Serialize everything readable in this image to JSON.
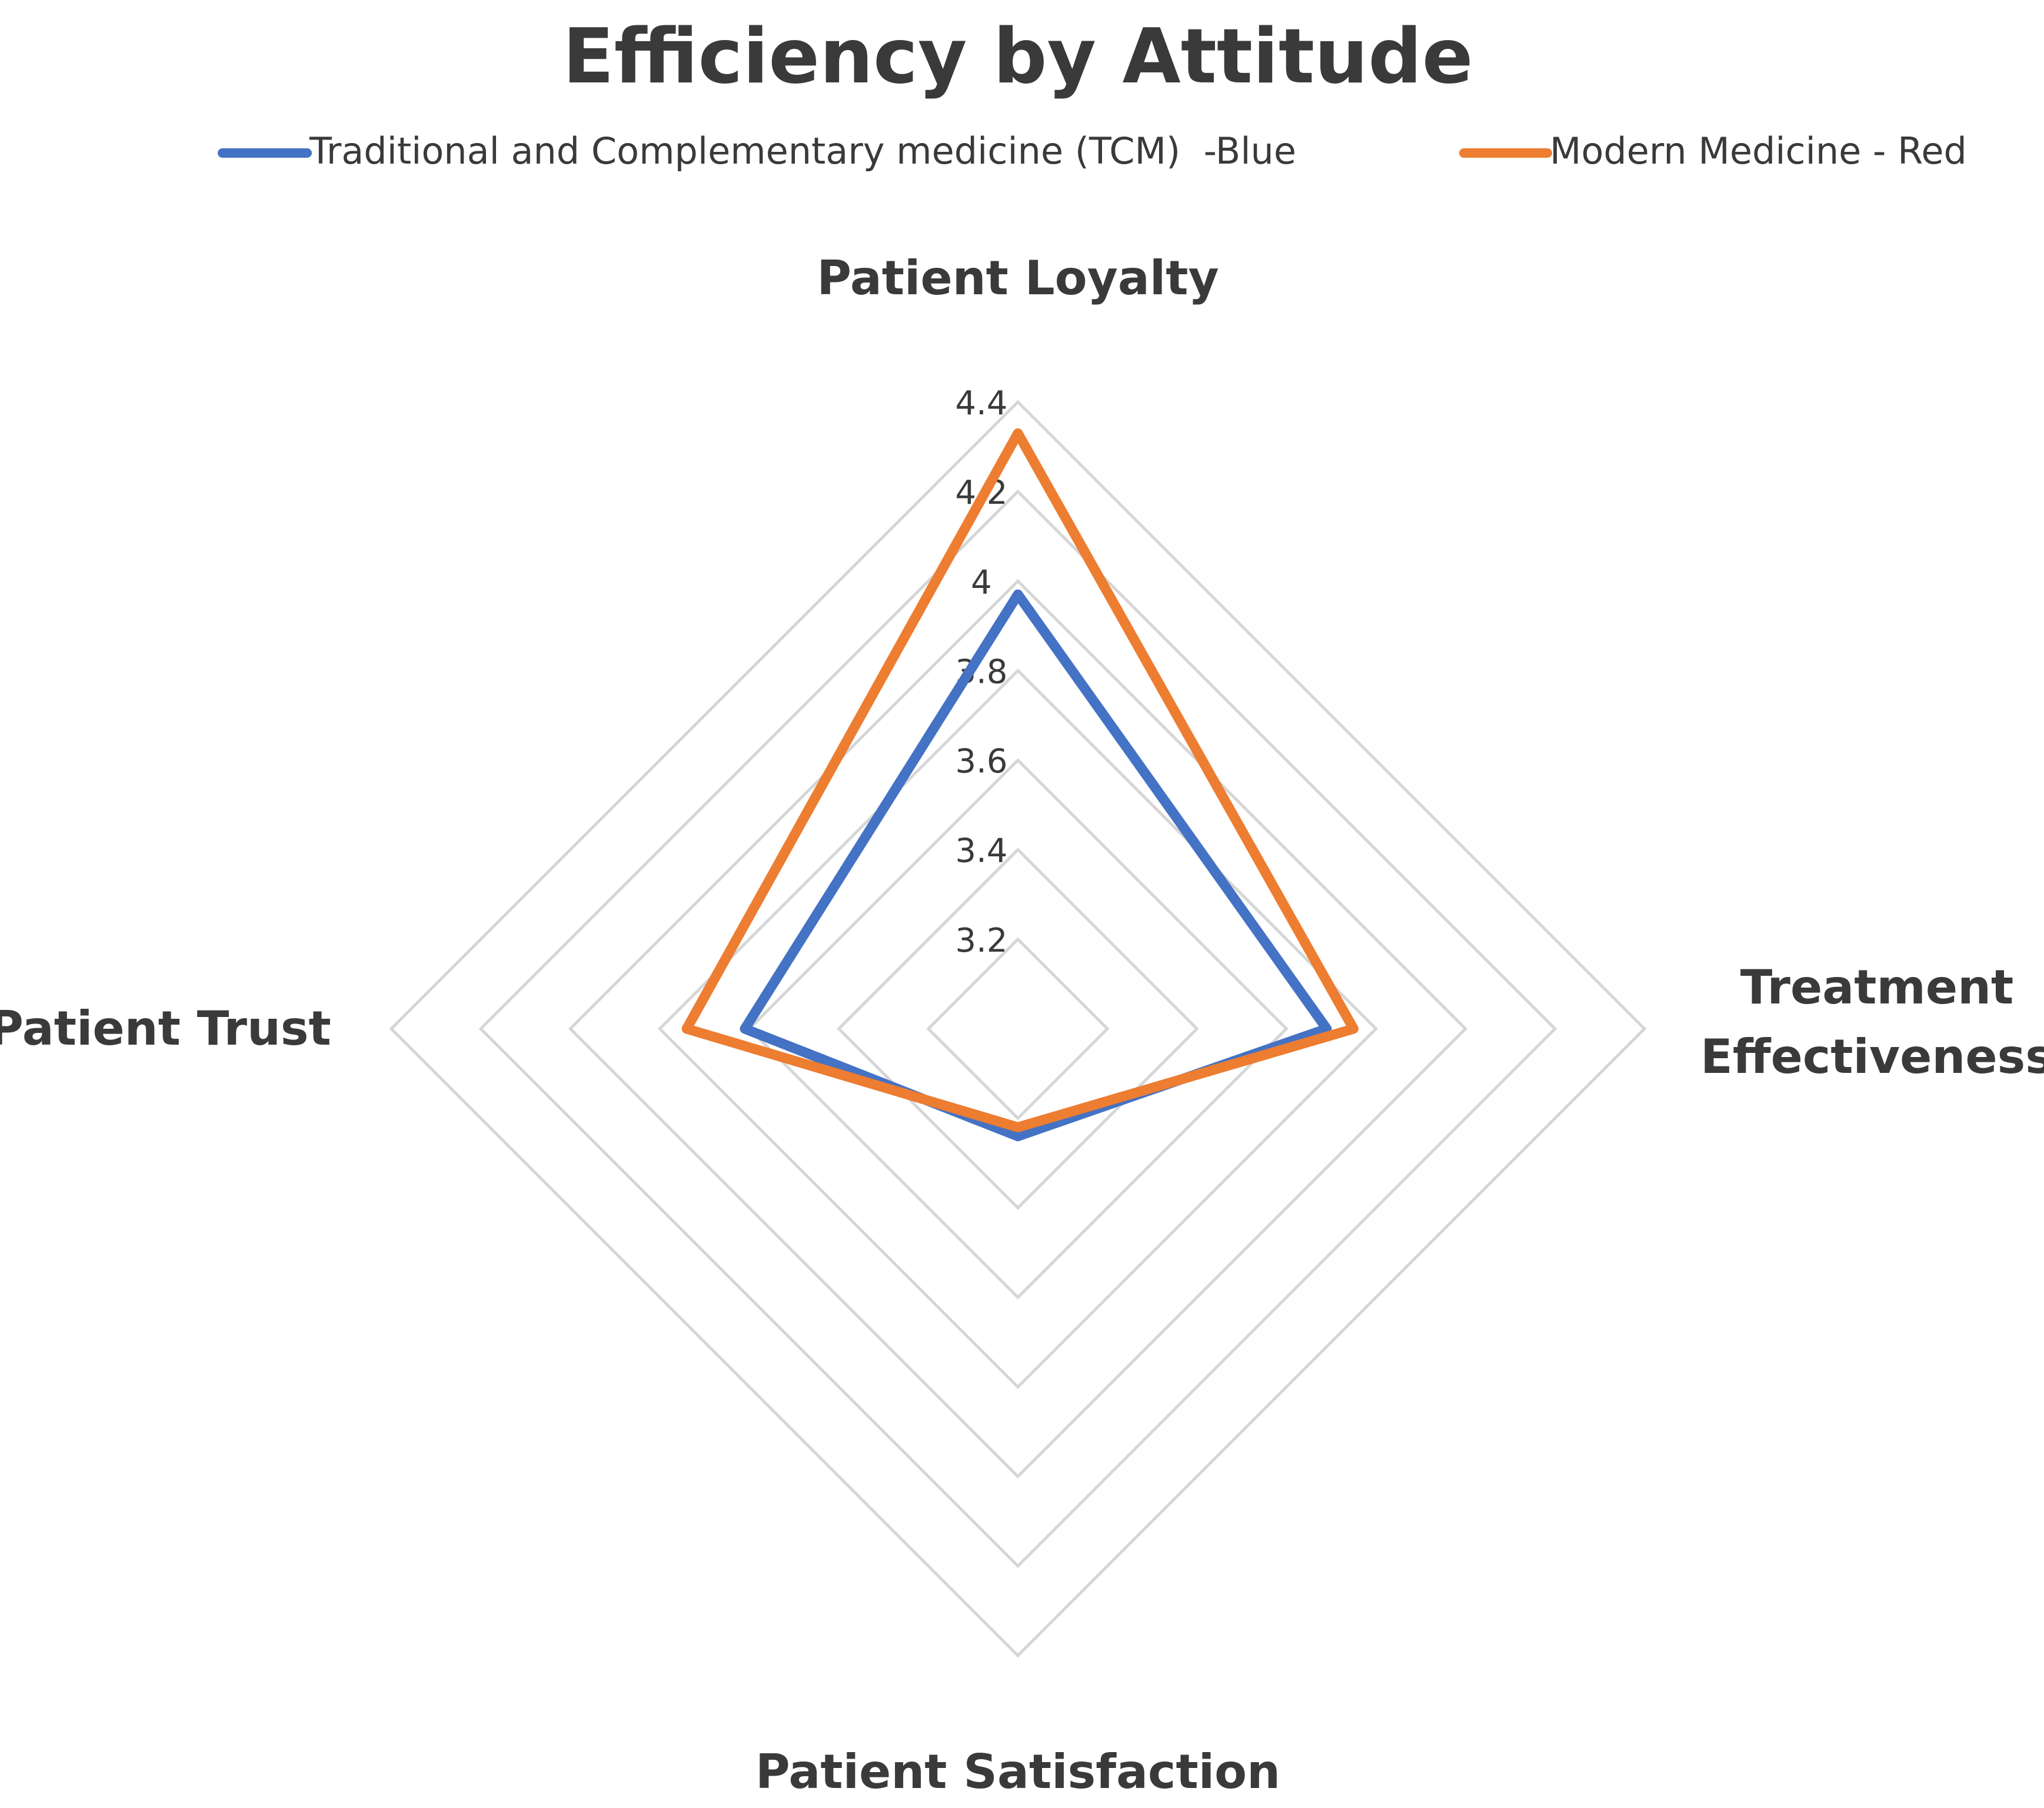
{
  "chart_data": {
    "type": "radar",
    "title": "Efficiency by Attitude",
    "categories": [
      "Patient Loyalty",
      "Treatment Effectiveness",
      "Patient Satisfaction",
      "Patient Trust"
    ],
    "category_label_lines": [
      [
        "Patient Loyalty"
      ],
      [
        "Treatment",
        "Effectiveness"
      ],
      [
        "Patient Satisfaction"
      ],
      [
        "Patient Trust"
      ]
    ],
    "series": [
      {
        "name": "Traditional and Complementary medicine (TCM)  -Blue",
        "color": "#4472C4",
        "values": [
          3.97,
          3.69,
          3.24,
          3.61
        ]
      },
      {
        "name": "Modern Medicine - Red",
        "color": "#ED7D31",
        "values": [
          4.33,
          3.75,
          3.22,
          3.74
        ]
      }
    ],
    "rlim": [
      3.0,
      4.4
    ],
    "ticks": [
      3.2,
      3.4,
      3.6,
      3.8,
      4,
      4.2,
      4.4
    ],
    "tick_labels": [
      "3.2",
      "3.4",
      "3.6",
      "3.8",
      "4",
      "4.2",
      "4.4"
    ],
    "legend_position": "top"
  }
}
